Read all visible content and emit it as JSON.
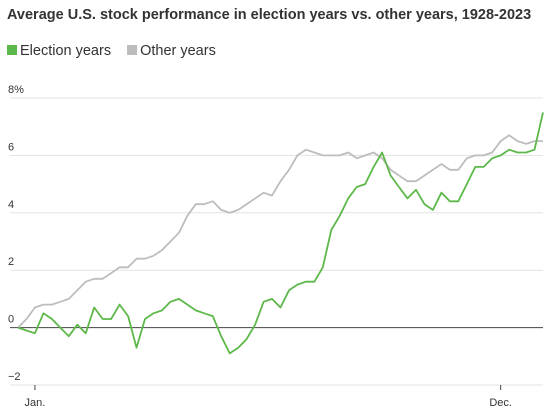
{
  "chart_data": {
    "type": "line",
    "title": "Average U.S. stock performance in election years vs. other years, 1928-2023",
    "categories": [
      null,
      null,
      "Jan.",
      null,
      null,
      null,
      null,
      null,
      null,
      null,
      null,
      null,
      null,
      null,
      null,
      null,
      null,
      null,
      null,
      null,
      null,
      null,
      null,
      null,
      null,
      null,
      null,
      null,
      null,
      null,
      null,
      null,
      null,
      null,
      null,
      null,
      null,
      null,
      null,
      null,
      null,
      null,
      null,
      null,
      null,
      null,
      null,
      null,
      null,
      null,
      null,
      null,
      null,
      null,
      null,
      null,
      null,
      "Dec.",
      null,
      null,
      null,
      null,
      null
    ],
    "series": [
      {
        "name": "Election years",
        "color": "#5db84a",
        "values": [
          0,
          -0.1,
          -0.2,
          0.5,
          0.3,
          0.0,
          -0.3,
          0.1,
          -0.2,
          0.7,
          0.3,
          0.3,
          0.8,
          0.4,
          -0.7,
          0.3,
          0.5,
          0.6,
          0.9,
          1.0,
          0.8,
          0.6,
          0.5,
          0.4,
          -0.3,
          -0.9,
          -0.7,
          -0.4,
          0.1,
          0.9,
          1.0,
          0.7,
          1.3,
          1.5,
          1.6,
          1.6,
          2.1,
          3.4,
          3.9,
          4.5,
          4.9,
          5.0,
          5.6,
          6.1,
          5.3,
          4.9,
          4.5,
          4.8,
          4.3,
          4.1,
          4.7,
          4.4,
          4.4,
          5.0,
          5.6,
          5.6,
          5.9,
          6.0,
          6.2,
          6.1,
          6.1,
          6.2,
          7.5
        ]
      },
      {
        "name": "Other years",
        "color": "#bdbdbd",
        "values": [
          0,
          0.3,
          0.7,
          0.8,
          0.8,
          0.9,
          1.0,
          1.3,
          1.6,
          1.7,
          1.7,
          1.9,
          2.1,
          2.1,
          2.4,
          2.4,
          2.5,
          2.7,
          3.0,
          3.3,
          3.9,
          4.3,
          4.3,
          4.4,
          4.1,
          4.0,
          4.1,
          4.3,
          4.5,
          4.7,
          4.6,
          5.1,
          5.5,
          6.0,
          6.2,
          6.1,
          6.0,
          6.0,
          6.0,
          6.1,
          5.9,
          6.0,
          6.1,
          5.9,
          5.5,
          5.3,
          5.1,
          5.1,
          5.3,
          5.5,
          5.7,
          5.5,
          5.5,
          5.9,
          6.0,
          6.0,
          6.1,
          6.5,
          6.7,
          6.5,
          6.4,
          6.5,
          6.5
        ]
      }
    ],
    "ylim": [
      -2,
      8
    ],
    "yticks": [
      {
        "value": -2,
        "label": "−2"
      },
      0,
      2,
      4,
      6,
      {
        "value": 8,
        "label": "8%"
      }
    ],
    "grid": true
  }
}
